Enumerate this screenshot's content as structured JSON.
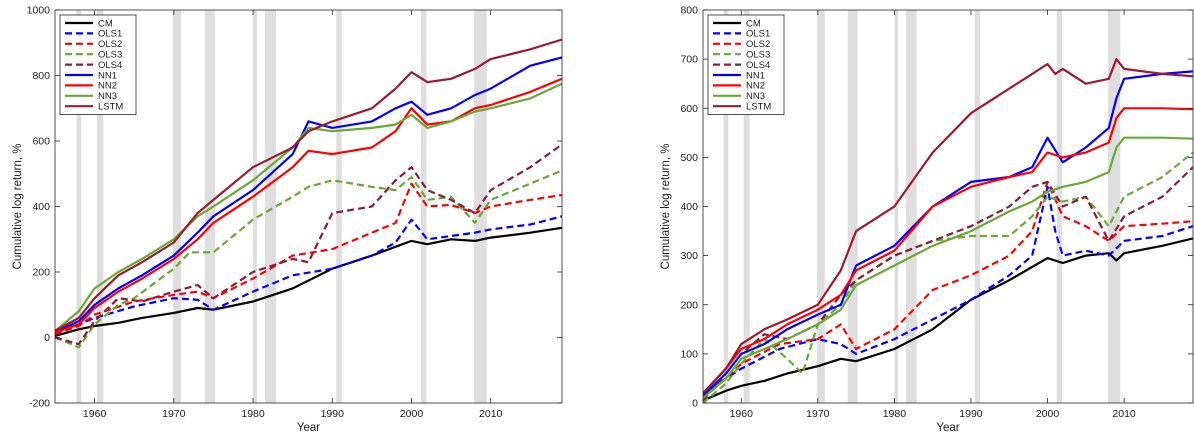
{
  "chart_data": [
    {
      "type": "line",
      "panel": "left",
      "xlabel": "Year",
      "ylabel": "Cumulative log return, %",
      "xlim": [
        1955,
        2019
      ],
      "ylim": [
        -200,
        1000
      ],
      "xticks": [
        1960,
        1970,
        1980,
        1990,
        2000,
        2010
      ],
      "yticks": [
        -200,
        0,
        200,
        400,
        600,
        800,
        1000
      ],
      "legend_position": "top-left",
      "recession_shading": [
        [
          1957.7,
          1958.3
        ],
        [
          1960.3,
          1961.1
        ],
        [
          1969.9,
          1970.9
        ],
        [
          1973.9,
          1975.2
        ],
        [
          1980.0,
          1980.5
        ],
        [
          1981.5,
          1982.9
        ],
        [
          1990.5,
          1991.2
        ],
        [
          2001.2,
          2001.9
        ],
        [
          2007.9,
          2009.5
        ]
      ],
      "series": [
        {
          "name": "CM",
          "color": "#000000",
          "dash": "solid",
          "x": [
            1955,
            1958,
            1960,
            1963,
            1966,
            1970,
            1973,
            1975,
            1980,
            1985,
            1990,
            1995,
            2000,
            2002,
            2005,
            2008,
            2010,
            2015,
            2019
          ],
          "y": [
            5,
            25,
            35,
            45,
            60,
            75,
            90,
            85,
            110,
            150,
            210,
            250,
            295,
            285,
            300,
            295,
            305,
            320,
            335
          ]
        },
        {
          "name": "OLS1",
          "color": "#0000ff",
          "dash": "dash",
          "x": [
            1955,
            1958,
            1960,
            1965,
            1970,
            1973,
            1975,
            1980,
            1985,
            1990,
            1995,
            1998,
            2000,
            2002,
            2005,
            2008,
            2010,
            2015,
            2019
          ],
          "y": [
            15,
            40,
            60,
            95,
            120,
            115,
            85,
            140,
            190,
            210,
            250,
            290,
            360,
            300,
            310,
            320,
            330,
            345,
            370
          ]
        },
        {
          "name": "OLS2",
          "color": "#ff0000",
          "dash": "dash",
          "x": [
            1955,
            1958,
            1960,
            1965,
            1970,
            1973,
            1975,
            1980,
            1985,
            1990,
            1995,
            1998,
            2000,
            2002,
            2005,
            2008,
            2010,
            2015,
            2019
          ],
          "y": [
            10,
            35,
            70,
            110,
            130,
            140,
            120,
            180,
            250,
            270,
            320,
            350,
            470,
            400,
            405,
            380,
            400,
            420,
            435
          ]
        },
        {
          "name": "OLS3",
          "color": "#66aa33",
          "dash": "dash",
          "x": [
            1955,
            1958,
            1960,
            1963,
            1965,
            1970,
            1972,
            1975,
            1980,
            1985,
            1987,
            1990,
            1995,
            1998,
            2000,
            2002,
            2005,
            2008,
            2010,
            2015,
            2019
          ],
          "y": [
            0,
            -30,
            40,
            100,
            120,
            210,
            260,
            260,
            360,
            430,
            460,
            480,
            460,
            450,
            490,
            420,
            430,
            350,
            420,
            470,
            510
          ]
        },
        {
          "name": "OLS4",
          "color": "#8b1a3c",
          "dash": "dash",
          "x": [
            1955,
            1958,
            1960,
            1963,
            1966,
            1970,
            1973,
            1975,
            1980,
            1985,
            1987,
            1990,
            1995,
            1998,
            2000,
            2002,
            2005,
            2008,
            2010,
            2015,
            2019
          ],
          "y": [
            0,
            -20,
            50,
            120,
            110,
            140,
            160,
            120,
            200,
            240,
            230,
            380,
            400,
            480,
            520,
            450,
            420,
            380,
            450,
            520,
            590
          ]
        },
        {
          "name": "NN1",
          "color": "#0000ff",
          "dash": "solid",
          "x": [
            1955,
            1958,
            1960,
            1963,
            1966,
            1970,
            1973,
            1975,
            1980,
            1985,
            1987,
            1990,
            1995,
            1998,
            2000,
            2002,
            2005,
            2008,
            2010,
            2015,
            2019
          ],
          "y": [
            15,
            50,
            100,
            150,
            190,
            250,
            320,
            370,
            450,
            560,
            660,
            640,
            660,
            700,
            720,
            680,
            700,
            740,
            760,
            830,
            855
          ]
        },
        {
          "name": "NN2",
          "color": "#ff0000",
          "dash": "solid",
          "x": [
            1955,
            1958,
            1960,
            1963,
            1966,
            1970,
            1973,
            1975,
            1980,
            1985,
            1987,
            1990,
            1995,
            1998,
            2000,
            2002,
            2005,
            2008,
            2010,
            2015,
            2019
          ],
          "y": [
            15,
            40,
            90,
            140,
            180,
            240,
            300,
            350,
            430,
            520,
            570,
            560,
            580,
            630,
            700,
            650,
            660,
            700,
            710,
            750,
            790
          ]
        },
        {
          "name": "NN3",
          "color": "#66aa33",
          "dash": "solid",
          "x": [
            1955,
            1958,
            1960,
            1963,
            1966,
            1970,
            1973,
            1975,
            1980,
            1985,
            1987,
            1990,
            1995,
            1998,
            2000,
            2002,
            2005,
            2008,
            2010,
            2015,
            2019
          ],
          "y": [
            20,
            80,
            150,
            200,
            240,
            300,
            370,
            400,
            480,
            580,
            640,
            630,
            640,
            650,
            680,
            640,
            660,
            690,
            700,
            730,
            775
          ]
        },
        {
          "name": "LSTM",
          "color": "#a0182e",
          "dash": "solid",
          "x": [
            1955,
            1958,
            1960,
            1963,
            1966,
            1970,
            1973,
            1975,
            1980,
            1985,
            1987,
            1990,
            1995,
            1998,
            2000,
            2002,
            2005,
            2008,
            2010,
            2015,
            2019
          ],
          "y": [
            20,
            60,
            120,
            190,
            230,
            290,
            380,
            420,
            520,
            580,
            630,
            660,
            700,
            760,
            810,
            780,
            790,
            820,
            850,
            880,
            910
          ]
        }
      ]
    },
    {
      "type": "line",
      "panel": "right",
      "xlabel": "Year",
      "ylabel": "Cumulative log return, %",
      "xlim": [
        1955,
        2019
      ],
      "ylim": [
        0,
        800
      ],
      "xticks": [
        1960,
        1970,
        1980,
        1990,
        2000,
        2010
      ],
      "yticks": [
        0,
        100,
        200,
        300,
        400,
        500,
        600,
        700,
        800
      ],
      "legend_position": "top-left",
      "recession_shading": [
        [
          1957.7,
          1958.3
        ],
        [
          1960.3,
          1961.1
        ],
        [
          1969.9,
          1970.9
        ],
        [
          1973.9,
          1975.2
        ],
        [
          1980.0,
          1980.5
        ],
        [
          1981.5,
          1982.9
        ],
        [
          1990.5,
          1991.2
        ],
        [
          2001.2,
          2001.9
        ],
        [
          2007.9,
          2009.5
        ]
      ],
      "series": [
        {
          "name": "CM",
          "color": "#000000",
          "dash": "solid",
          "x": [
            1955,
            1958,
            1960,
            1963,
            1966,
            1970,
            1973,
            1975,
            1980,
            1985,
            1990,
            1995,
            2000,
            2002,
            2005,
            2008,
            2009,
            2010,
            2015,
            2019
          ],
          "y": [
            5,
            25,
            35,
            45,
            60,
            75,
            90,
            85,
            110,
            150,
            210,
            250,
            295,
            285,
            300,
            305,
            290,
            305,
            320,
            335
          ]
        },
        {
          "name": "OLS1",
          "color": "#0000ff",
          "dash": "dash",
          "x": [
            1955,
            1958,
            1960,
            1965,
            1970,
            1973,
            1975,
            1980,
            1985,
            1990,
            1995,
            1998,
            2000,
            2001,
            2002,
            2005,
            2008,
            2010,
            2015,
            2019
          ],
          "y": [
            15,
            50,
            70,
            110,
            130,
            120,
            100,
            130,
            170,
            210,
            260,
            300,
            440,
            350,
            300,
            310,
            300,
            330,
            340,
            360
          ]
        },
        {
          "name": "OLS2",
          "color": "#ff0000",
          "dash": "dash",
          "x": [
            1955,
            1958,
            1960,
            1965,
            1970,
            1973,
            1975,
            1980,
            1985,
            1990,
            1995,
            1998,
            2000,
            2002,
            2005,
            2008,
            2010,
            2015,
            2019
          ],
          "y": [
            10,
            50,
            80,
            120,
            130,
            160,
            110,
            150,
            230,
            260,
            300,
            350,
            450,
            380,
            360,
            330,
            360,
            365,
            370
          ]
        },
        {
          "name": "OLS3",
          "color": "#66aa33",
          "dash": "dash",
          "x": [
            1955,
            1958,
            1960,
            1963,
            1966,
            1968,
            1970,
            1973,
            1975,
            1980,
            1985,
            1990,
            1995,
            1998,
            2000,
            2002,
            2005,
            2008,
            2010,
            2015,
            2019
          ],
          "y": [
            0,
            40,
            80,
            130,
            90,
            60,
            160,
            200,
            250,
            300,
            330,
            340,
            340,
            380,
            420,
            410,
            420,
            360,
            420,
            460,
            510
          ]
        },
        {
          "name": "OLS4",
          "color": "#8b1a3c",
          "dash": "dash",
          "x": [
            1955,
            1958,
            1960,
            1963,
            1966,
            1970,
            1973,
            1975,
            1980,
            1985,
            1990,
            1995,
            1998,
            2000,
            2002,
            2005,
            2008,
            2010,
            2015,
            2019
          ],
          "y": [
            5,
            60,
            100,
            140,
            130,
            160,
            220,
            250,
            300,
            330,
            360,
            400,
            440,
            450,
            400,
            420,
            330,
            380,
            420,
            480
          ]
        },
        {
          "name": "NN1",
          "color": "#0000ff",
          "dash": "solid",
          "x": [
            1955,
            1958,
            1960,
            1963,
            1966,
            1970,
            1973,
            1975,
            1980,
            1985,
            1990,
            1995,
            1998,
            2000,
            2002,
            2005,
            2008,
            2009,
            2010,
            2015,
            2019
          ],
          "y": [
            15,
            60,
            100,
            120,
            150,
            180,
            200,
            280,
            320,
            400,
            450,
            460,
            480,
            540,
            490,
            520,
            560,
            620,
            660,
            670,
            675
          ]
        },
        {
          "name": "NN2",
          "color": "#ff0000",
          "dash": "solid",
          "x": [
            1955,
            1958,
            1960,
            1963,
            1966,
            1970,
            1973,
            1975,
            1980,
            1985,
            1990,
            1995,
            1998,
            2000,
            2002,
            2005,
            2008,
            2009,
            2010,
            2015,
            2019
          ],
          "y": [
            20,
            70,
            110,
            130,
            160,
            190,
            220,
            270,
            310,
            400,
            440,
            460,
            470,
            510,
            500,
            510,
            530,
            580,
            600,
            600,
            598
          ]
        },
        {
          "name": "NN3",
          "color": "#66aa33",
          "dash": "solid",
          "x": [
            1955,
            1958,
            1960,
            1963,
            1966,
            1970,
            1973,
            1975,
            1980,
            1985,
            1990,
            1995,
            1998,
            2000,
            2002,
            2005,
            2008,
            2009,
            2010,
            2015,
            2019
          ],
          "y": [
            10,
            50,
            90,
            110,
            130,
            160,
            190,
            240,
            280,
            320,
            350,
            390,
            410,
            430,
            440,
            450,
            470,
            520,
            540,
            540,
            538
          ]
        },
        {
          "name": "LSTM",
          "color": "#a0182e",
          "dash": "solid",
          "x": [
            1955,
            1958,
            1960,
            1963,
            1966,
            1970,
            1973,
            1975,
            1980,
            1985,
            1990,
            1995,
            1998,
            2000,
            2001,
            2002,
            2005,
            2008,
            2009,
            2010,
            2015,
            2019
          ],
          "y": [
            20,
            70,
            120,
            150,
            170,
            200,
            270,
            350,
            400,
            510,
            590,
            640,
            670,
            690,
            670,
            680,
            650,
            660,
            700,
            680,
            670,
            665
          ]
        }
      ]
    }
  ]
}
